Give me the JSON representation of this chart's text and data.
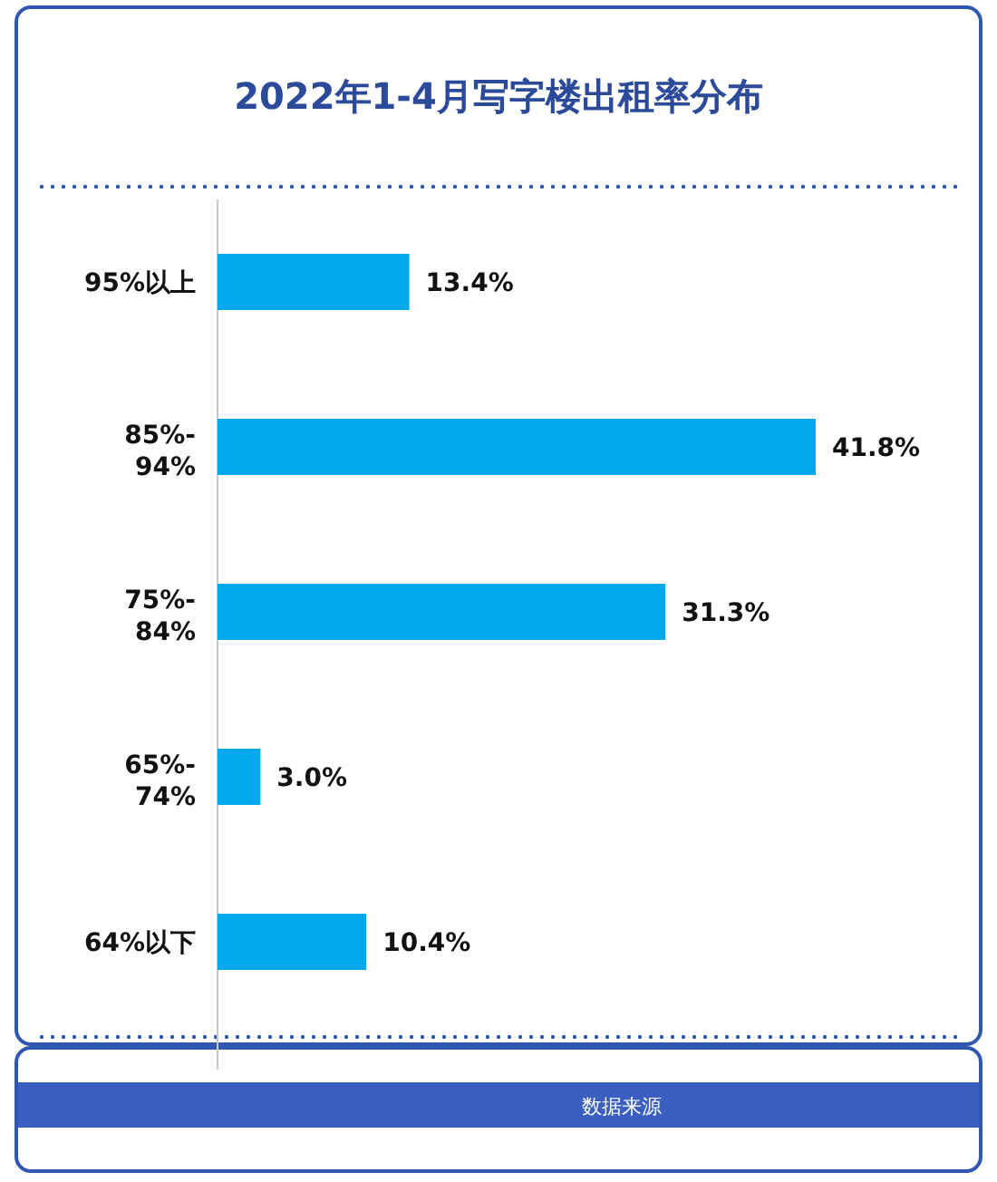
{
  "chart_data": {
    "type": "bar",
    "orientation": "horizontal",
    "title": "2022年1-4月写字楼出租率分布",
    "categories": [
      "95%以上",
      "85%-94%",
      "75%-84%",
      "65%-74%",
      "64%以下"
    ],
    "values": [
      13.4,
      41.8,
      31.3,
      3.0,
      10.4
    ],
    "value_labels": [
      "13.4%",
      "41.8%",
      "31.3%",
      "3.0%",
      "10.4%"
    ],
    "color": "#00a8ec",
    "annotations": [
      "数据来源"
    ]
  }
}
